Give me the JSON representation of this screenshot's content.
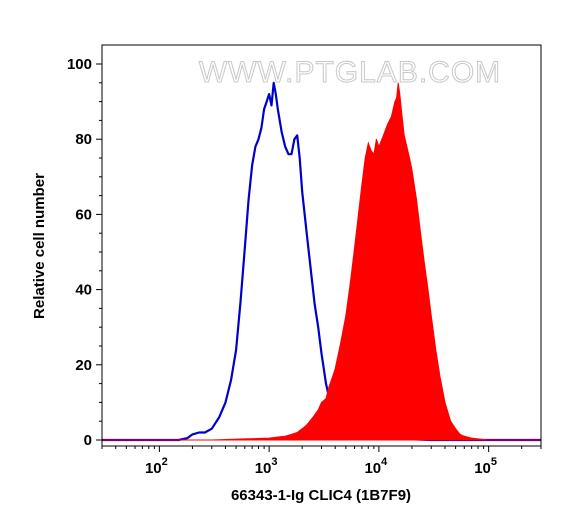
{
  "watermark": "WWW.PTGLAB.COM",
  "chart_data": {
    "type": "area",
    "xlabel": "66343-1-Ig CLIC4 (1B7F9)",
    "ylabel": "Relative cell number",
    "x_scale": "log",
    "xlim": [
      30,
      300000
    ],
    "ylim": [
      0,
      100
    ],
    "x_ticks": [
      {
        "base": "10",
        "exp": "2",
        "value": 100
      },
      {
        "base": "10",
        "exp": "3",
        "value": 1000
      },
      {
        "base": "10",
        "exp": "4",
        "value": 10000
      },
      {
        "base": "10",
        "exp": "5",
        "value": 100000
      }
    ],
    "y_ticks": [
      0,
      20,
      40,
      60,
      80,
      100
    ],
    "series": [
      {
        "style": "outline",
        "color": "#0000cc",
        "x": [
          30,
          60,
          100,
          150,
          180,
          200,
          230,
          260,
          300,
          350,
          400,
          450,
          500,
          550,
          600,
          650,
          700,
          750,
          800,
          850,
          900,
          950,
          1000,
          1050,
          1100,
          1150,
          1200,
          1300,
          1400,
          1500,
          1600,
          1700,
          1800,
          1900,
          2000,
          2200,
          2400,
          2600,
          2800,
          3000,
          3300,
          3600,
          4000,
          4500,
          5000,
          6000,
          7000,
          10000,
          30000,
          100000,
          300000
        ],
        "y": [
          0,
          0,
          0,
          0,
          0.5,
          1.5,
          2,
          2,
          3,
          6,
          10,
          16,
          24,
          37,
          51,
          64,
          73,
          78,
          80,
          83,
          88,
          90,
          92,
          89,
          95,
          92,
          88,
          82,
          78,
          76,
          76,
          80,
          81,
          75,
          66,
          55,
          45,
          36,
          30,
          23,
          15,
          10,
          6,
          4,
          3,
          1.5,
          1,
          0.5,
          0,
          0,
          0
        ]
      },
      {
        "style": "filled",
        "color": "#ff0000",
        "x": [
          30,
          300,
          600,
          1000,
          1200,
          1400,
          1600,
          1800,
          2000,
          2200,
          2500,
          2800,
          3000,
          3300,
          3500,
          3800,
          4000,
          4500,
          5000,
          5500,
          6000,
          6500,
          7000,
          7500,
          8000,
          8500,
          9000,
          9500,
          10000,
          11000,
          12000,
          13000,
          14000,
          14500,
          15000,
          15500,
          16000,
          17000,
          18000,
          19000,
          20000,
          22000,
          24000,
          26000,
          28000,
          30000,
          33000,
          36000,
          40000,
          45000,
          50000,
          55000,
          60000,
          70000,
          80000,
          100000,
          200000,
          300000
        ],
        "y": [
          0,
          0,
          0.3,
          0.5,
          0.8,
          1,
          1.5,
          2,
          3,
          4,
          6,
          8,
          10,
          11,
          14,
          17,
          19,
          26,
          33,
          42,
          51,
          60,
          68,
          75,
          79,
          77,
          76,
          80,
          78,
          81,
          84,
          86,
          90,
          91,
          95,
          92,
          88,
          81,
          78,
          75,
          72,
          64,
          55,
          47,
          40,
          33,
          24,
          17,
          10,
          5,
          3,
          1.5,
          1,
          0.5,
          0.3,
          0,
          0,
          0
        ]
      }
    ]
  }
}
